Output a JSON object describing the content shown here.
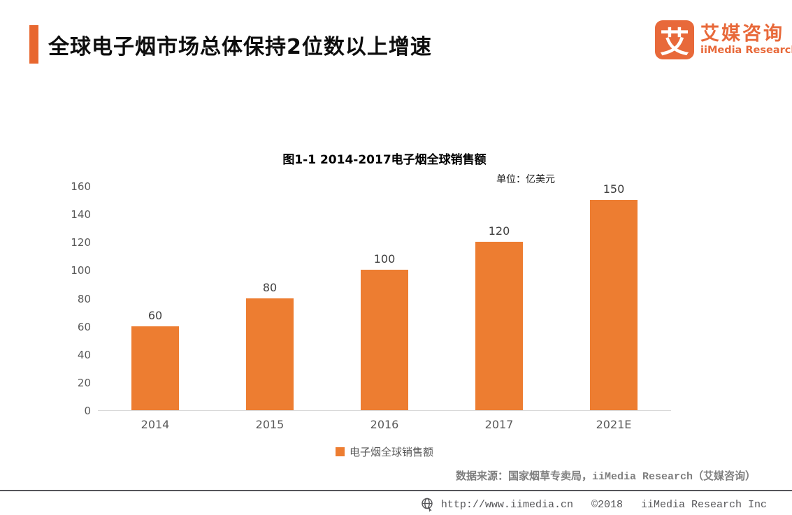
{
  "header": {
    "title": "全球电子烟市场总体保持2位数以上增速",
    "logo": {
      "glyph": "艾",
      "brand_cn": "艾媒咨询",
      "brand_en": "iiMedia Research"
    }
  },
  "chart_data": {
    "type": "bar",
    "title": "图1-1 2014-2017电子烟全球销售额",
    "unit_label": "单位：亿美元",
    "categories": [
      "2014",
      "2015",
      "2016",
      "2017",
      "2021E"
    ],
    "values": [
      60,
      80,
      100,
      120,
      150
    ],
    "series_name": "电子烟全球销售额",
    "xlabel": "",
    "ylabel": "",
    "ylim": [
      0,
      160
    ],
    "yticks": [
      0,
      20,
      40,
      60,
      80,
      100,
      120,
      140,
      160
    ],
    "grid": false,
    "legend_position": "bottom",
    "bar_color": "#ED7D31",
    "data_labels_shown": true
  },
  "source_note": "数据来源：国家烟草专卖局，iiMedia Research（艾媒咨询）",
  "footer": {
    "url": "http://www.iimedia.cn",
    "copyright": "©2018",
    "company": "iiMedia Research  Inc"
  },
  "colors": {
    "accent_orange": "#E8672F",
    "logo_orange": "#E8693A",
    "bar_orange": "#ED7D31",
    "axis_line": "#D9D9D9",
    "tick_label_gray": "#595959",
    "source_gray": "#7F7F7F",
    "footer_line_gray": "#55555A"
  }
}
